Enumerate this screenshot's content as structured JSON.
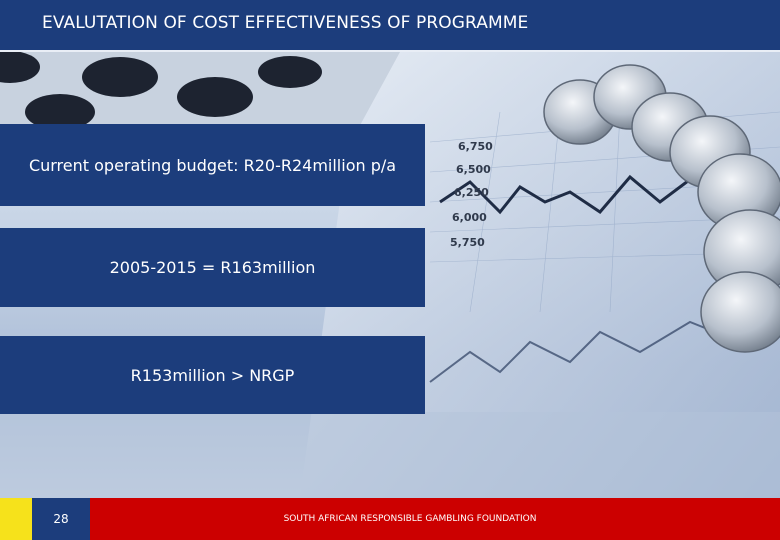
{
  "header": {
    "title": "EVALUTATION OF COST EFFECTIVENESS OF PROGRAMME"
  },
  "boxes": [
    {
      "text": "Current operating budget: R20-R24million p/a"
    },
    {
      "text": "2005-2015 = R163million"
    },
    {
      "text": "R153million > NRGP"
    }
  ],
  "photo": {
    "chart_axis_labels": [
      "6,750",
      "6,500",
      "6,250",
      "6,000",
      "5,750"
    ]
  },
  "footer": {
    "page_number": "28",
    "organization": "SOUTH AFRICAN RESPONSIBLE GAMBLING FOUNDATION"
  }
}
